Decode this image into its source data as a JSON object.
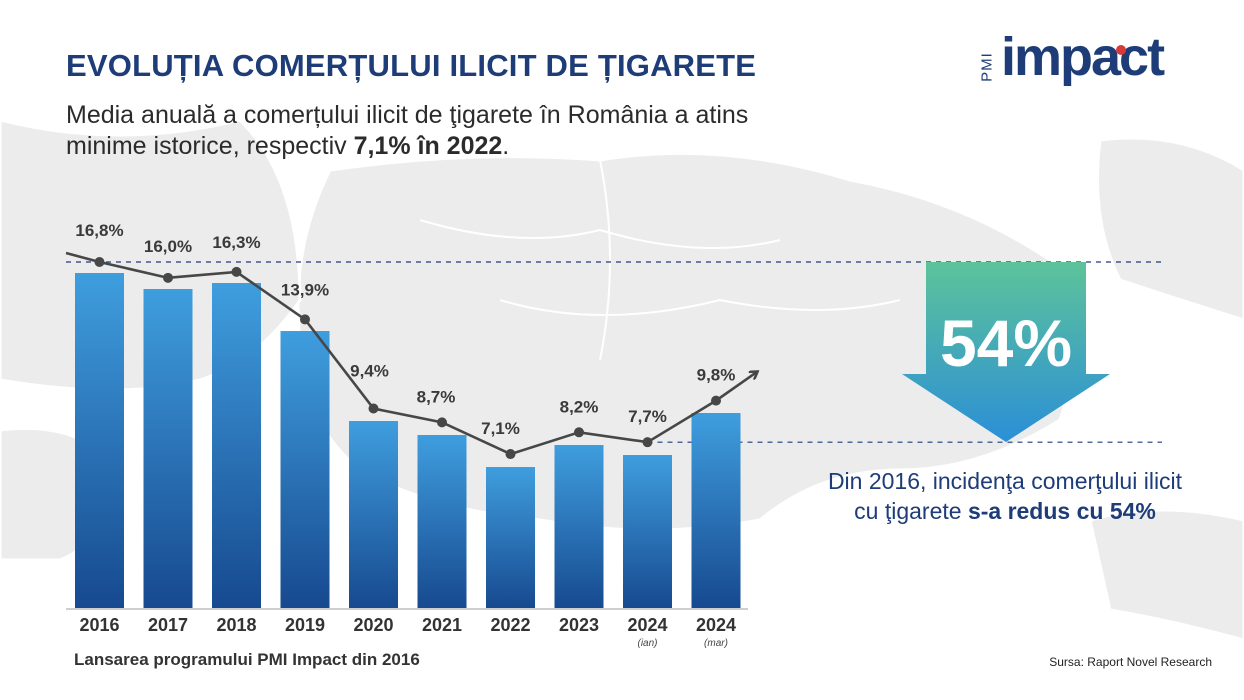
{
  "header": {
    "title": "EVOLUȚIA COMERȚULUI ILICIT DE ȚIGARETE",
    "subtitle_part1": "Media anuală a comerțului ilicit de ţigarete în România a atins minime istorice, respectiv ",
    "subtitle_bold": "7,1% în 2022",
    "subtitle_end": "."
  },
  "logo": {
    "pmi": "PMI",
    "word": "impact"
  },
  "highlight": {
    "big_value": "54%",
    "callout_part1": "Din 2016, incidenţa comerţului ilicit cu ţigarete ",
    "callout_bold": "s-a redus cu 54%"
  },
  "footer": {
    "note": "Lansarea programului PMI Impact din 2016",
    "source": "Sursa: Raport Novel Research"
  },
  "colors": {
    "navy": "#1d3c78",
    "bar_top": "#3f9ede",
    "bar_bottom": "#17498f",
    "line": "#474747",
    "arrow_top": "#5dc39a",
    "arrow_bottom": "#2b8fd6"
  },
  "chart_data": {
    "type": "bar",
    "categories": [
      "2016",
      "2017",
      "2018",
      "2019",
      "2020",
      "2021",
      "2022",
      "2023",
      "2024",
      "2024"
    ],
    "category_sublabels": [
      "",
      "",
      "",
      "",
      "",
      "",
      "",
      "",
      "(ian)",
      "(mar)"
    ],
    "values": [
      16.8,
      16.0,
      16.3,
      13.9,
      9.4,
      8.7,
      7.1,
      8.2,
      7.7,
      9.8
    ],
    "value_labels": [
      "16,8%",
      "16,0%",
      "16,3%",
      "13,9%",
      "9,4%",
      "8,7%",
      "7,1%",
      "8,2%",
      "7,7%",
      "9,8%"
    ],
    "overlay": "line",
    "reference_lines": [
      16.8,
      7.7
    ],
    "title": "",
    "xlabel": "",
    "ylabel": "",
    "grid": false,
    "legend": "none"
  }
}
